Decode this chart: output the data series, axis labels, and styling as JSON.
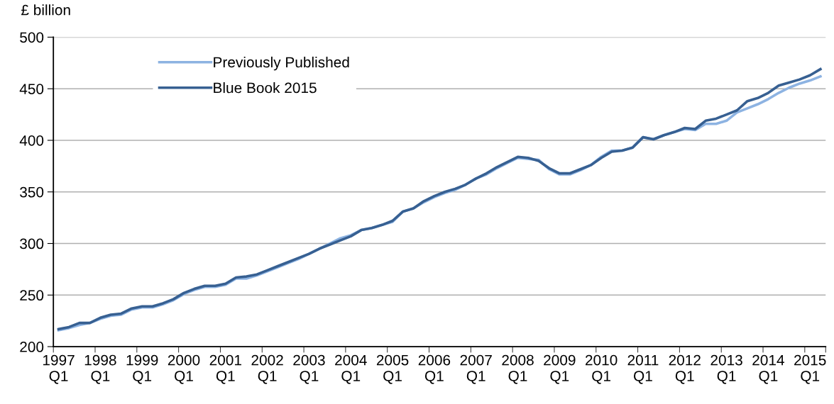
{
  "chart_data": {
    "type": "line",
    "ylabel": "£ billion",
    "categories": [
      "1997\nQ1",
      null,
      null,
      null,
      "1998\nQ1",
      null,
      null,
      null,
      "1999\nQ1",
      null,
      null,
      null,
      "2000\nQ1",
      null,
      null,
      null,
      "2001\nQ1",
      null,
      null,
      null,
      "2002\nQ1",
      null,
      null,
      null,
      "2003\nQ1",
      null,
      null,
      null,
      "2004\nQ1",
      null,
      null,
      null,
      "2005\nQ1",
      null,
      null,
      null,
      "2006\nQ1",
      null,
      null,
      null,
      "2007\nQ1",
      null,
      null,
      null,
      "2008\nQ1",
      null,
      null,
      null,
      "2009\nQ1",
      null,
      null,
      null,
      "2010\nQ1",
      null,
      null,
      null,
      "2011\nQ1",
      null,
      null,
      null,
      "2012\nQ1",
      null,
      null,
      null,
      "2013\nQ1",
      null,
      null,
      null,
      "2014\nQ1",
      null,
      null,
      null,
      "2015\nQ1",
      null
    ],
    "series": [
      {
        "name": "Previously Published",
        "color": "#8db3e2",
        "values": [
          216,
          218,
          221,
          223,
          227,
          230,
          231,
          236,
          238,
          238,
          241,
          245,
          251,
          255,
          258,
          258,
          260,
          266,
          266,
          269,
          273,
          277,
          281,
          285,
          290,
          295,
          300,
          305,
          308,
          313,
          315,
          318,
          321,
          331,
          334,
          340,
          345,
          349,
          352,
          357,
          363,
          367,
          373,
          378,
          383,
          382,
          381,
          372,
          367,
          367,
          371,
          376,
          384,
          390,
          390,
          393,
          403,
          401,
          405,
          408,
          411,
          410,
          416,
          416,
          419,
          427,
          431,
          435,
          440,
          446,
          451,
          455,
          458,
          462
        ]
      },
      {
        "name": "Blue Book 2015",
        "color": "#376092",
        "values": [
          217,
          219,
          223,
          223,
          228,
          231,
          232,
          237,
          239,
          239,
          242,
          246,
          252,
          256,
          259,
          259,
          261,
          267,
          268,
          270,
          274,
          278,
          282,
          286,
          290,
          295,
          299,
          303,
          307,
          313,
          315,
          318,
          322,
          331,
          334,
          341,
          346,
          350,
          353,
          357,
          363,
          368,
          374,
          379,
          384,
          383,
          380,
          373,
          368,
          368,
          372,
          376,
          383,
          389,
          390,
          393,
          403,
          401,
          405,
          408,
          412,
          411,
          419,
          421,
          425,
          429,
          438,
          441,
          446,
          453,
          456,
          459,
          463,
          469
        ]
      }
    ],
    "ylim": [
      200,
      500
    ],
    "yticks": [
      200,
      250,
      300,
      350,
      400,
      450,
      500
    ],
    "grid": "y",
    "legend": "top left"
  }
}
